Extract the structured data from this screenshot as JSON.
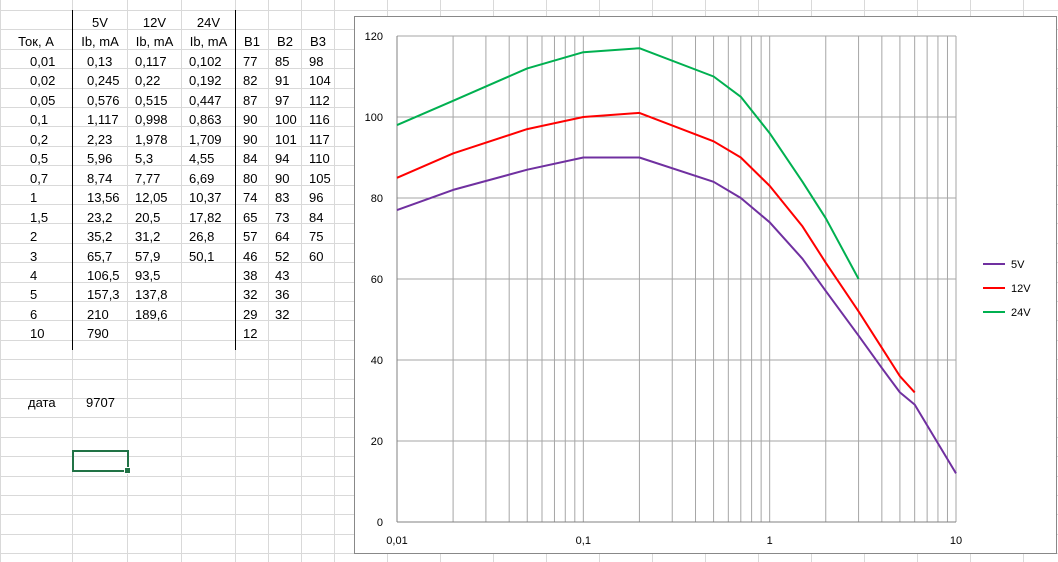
{
  "sheet": {
    "col_headers": [
      "",
      "5V",
      "12V",
      "24V",
      "",
      "",
      ""
    ],
    "sub_headers": [
      "Ток, А",
      "Ib, mA",
      "Ib, mA",
      "Ib, mA",
      "B1",
      "B2",
      "B3"
    ],
    "rows": [
      [
        "0,01",
        "0,13",
        "0,117",
        "0,102",
        "77",
        "85",
        "98"
      ],
      [
        "0,02",
        "0,245",
        "0,22",
        "0,192",
        "82",
        "91",
        "104"
      ],
      [
        "0,05",
        "0,576",
        "0,515",
        "0,447",
        "87",
        "97",
        "112"
      ],
      [
        "0,1",
        "1,117",
        "0,998",
        "0,863",
        "90",
        "100",
        "116"
      ],
      [
        "0,2",
        "2,23",
        "1,978",
        "1,709",
        "90",
        "101",
        "117"
      ],
      [
        "0,5",
        "5,96",
        "5,3",
        "4,55",
        "84",
        "94",
        "110"
      ],
      [
        "0,7",
        "8,74",
        "7,77",
        "6,69",
        "80",
        "90",
        "105"
      ],
      [
        "1",
        "13,56",
        "12,05",
        "10,37",
        "74",
        "83",
        "96"
      ],
      [
        "1,5",
        "23,2",
        "20,5",
        "17,82",
        "65",
        "73",
        "84"
      ],
      [
        "2",
        "35,2",
        "31,2",
        "26,8",
        "57",
        "64",
        "75"
      ],
      [
        "3",
        "65,7",
        "57,9",
        "50,1",
        "46",
        "52",
        "60"
      ],
      [
        "4",
        "106,5",
        "93,5",
        "",
        "38",
        "43",
        ""
      ],
      [
        "5",
        "157,3",
        "137,8",
        "",
        "32",
        "36",
        ""
      ],
      [
        "6",
        "210",
        "189,6",
        "",
        "29",
        "32",
        ""
      ],
      [
        "10",
        "790",
        "",
        "",
        "12",
        "",
        ""
      ]
    ],
    "date_label": "дата",
    "date_value": "9707"
  },
  "colors": {
    "grid": "#d9d9d9",
    "chart_grid": "#a6a6a6",
    "axis": "#808080",
    "selection": "#217346"
  },
  "chart_data": {
    "type": "line",
    "x_scale": "log",
    "x": [
      0.01,
      0.02,
      0.05,
      0.1,
      0.2,
      0.5,
      0.7,
      1,
      1.5,
      2,
      3,
      4,
      5,
      6,
      10
    ],
    "series": [
      {
        "name": "5V",
        "color": "#7030a0",
        "values": [
          77,
          82,
          87,
          90,
          90,
          84,
          80,
          74,
          65,
          57,
          46,
          38,
          32,
          29,
          12
        ]
      },
      {
        "name": "12V",
        "color": "#ff0000",
        "values": [
          85,
          91,
          97,
          100,
          101,
          94,
          90,
          83,
          73,
          64,
          52,
          43,
          36,
          32,
          null
        ]
      },
      {
        "name": "24V",
        "color": "#00b050",
        "values": [
          98,
          104,
          112,
          116,
          117,
          110,
          105,
          96,
          84,
          75,
          60,
          null,
          null,
          null,
          null
        ]
      }
    ],
    "xlim": [
      0.01,
      10
    ],
    "ylim": [
      0,
      120
    ],
    "x_ticks": [
      0.01,
      0.1,
      1,
      10
    ],
    "x_tick_labels": [
      "0,01",
      "0,1",
      "1",
      "10"
    ],
    "y_ticks": [
      0,
      20,
      40,
      60,
      80,
      100,
      120
    ],
    "y_tick_labels": [
      "0",
      "20",
      "40",
      "60",
      "80",
      "100",
      "120"
    ],
    "grid": true,
    "legend_position": "right",
    "title": "",
    "xlabel": "",
    "ylabel": ""
  }
}
